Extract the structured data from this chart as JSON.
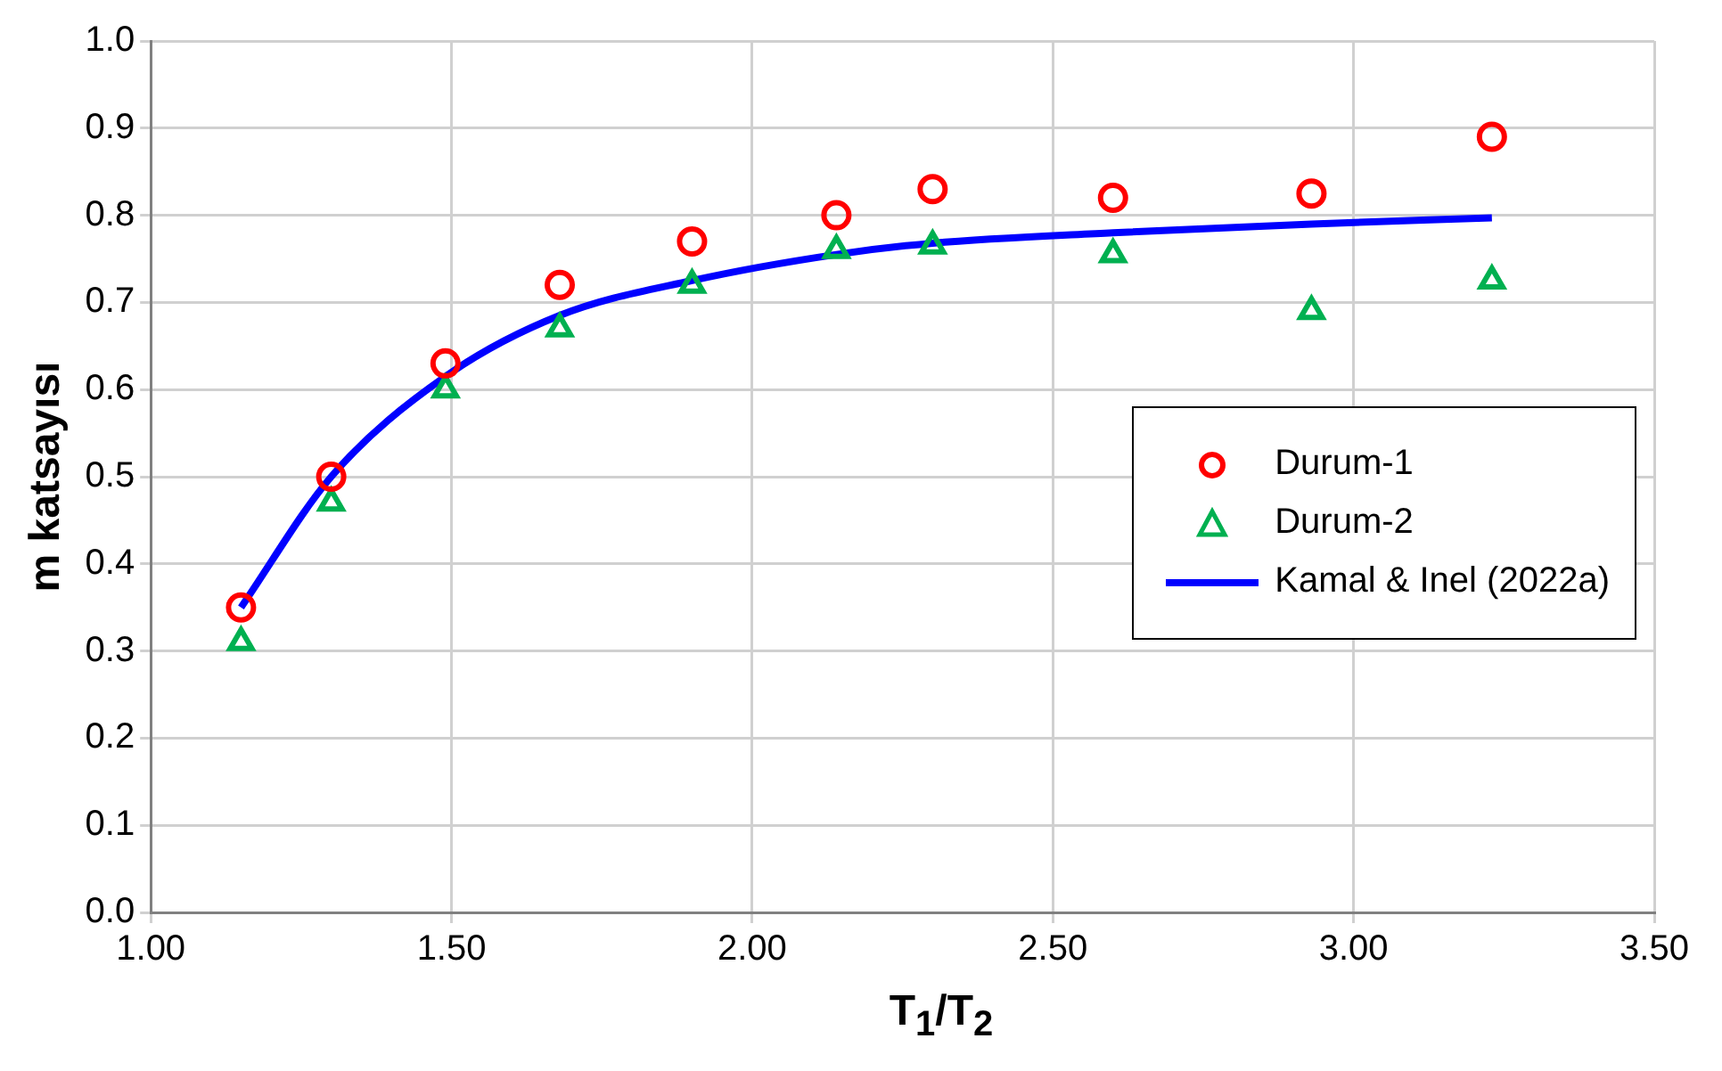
{
  "chart_data": {
    "type": "scatter",
    "xlabel": "T$_{1}$/T$_{2}$",
    "ylabel": "m katsayısı",
    "xlim": [
      1,
      3.5
    ],
    "xticks": [
      {
        "value": 1,
        "label": "1.00"
      },
      {
        "value": 1.5,
        "label": "1.50"
      },
      {
        "value": 2,
        "label": "2.00"
      },
      {
        "value": 2.5,
        "label": "2.50"
      },
      {
        "value": 3,
        "label": "3.00"
      },
      {
        "value": 3.5,
        "label": "3.50"
      }
    ],
    "ylim": [
      0,
      1
    ],
    "yticks": [
      {
        "value": 0,
        "label": "0.0"
      },
      0.1,
      0.2,
      0.3,
      0.4,
      0.5,
      0.6,
      0.7,
      0.8,
      0.9,
      {
        "value": 1,
        "label": "1.0"
      }
    ],
    "grid": true,
    "legend": "right",
    "series": [
      {
        "name": "Durum-1",
        "marker": "circle",
        "color": "#ff0000",
        "x": [
          1.15,
          1.3,
          1.49,
          1.68,
          1.9,
          2.14,
          2.3,
          2.6,
          2.93,
          3.23
        ],
        "values": [
          0.35,
          0.5,
          0.63,
          0.72,
          0.77,
          0.8,
          0.83,
          0.82,
          0.825,
          0.89
        ]
      },
      {
        "name": "Durum-2",
        "marker": "triangle",
        "color": "#00b050",
        "x": [
          1.15,
          1.3,
          1.49,
          1.68,
          1.9,
          2.14,
          2.3,
          2.6,
          2.93,
          3.23
        ],
        "values": [
          0.31,
          0.47,
          0.6,
          0.67,
          0.72,
          0.76,
          0.765,
          0.755,
          0.69,
          0.725
        ]
      },
      {
        "name": "Kamal & Inel (2022a)",
        "type": "line",
        "marker": "none",
        "line_style": "solid",
        "color": "#0000ff",
        "x": [
          1.15,
          1.3,
          1.49,
          1.68,
          1.9,
          2.14,
          2.3,
          2.6,
          2.93,
          3.23
        ],
        "values": [
          0.35,
          0.5,
          0.615,
          0.685,
          0.725,
          0.755,
          0.768,
          0.78,
          0.79,
          0.797
        ]
      }
    ]
  }
}
